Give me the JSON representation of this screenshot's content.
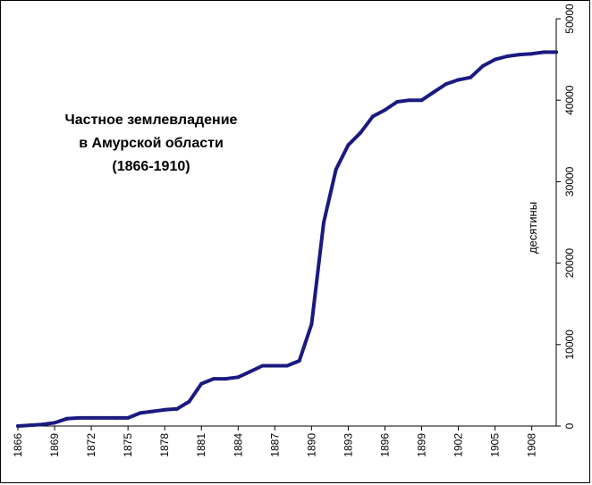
{
  "chart_data": {
    "type": "line",
    "title_lines": [
      "Частное землевладение",
      "в Амурской области",
      "(1866-1910)"
    ],
    "ylabel": "десятины",
    "ylim": [
      0,
      50000
    ],
    "yticks": [
      0,
      10000,
      20000,
      30000,
      40000,
      50000
    ],
    "xlim": [
      1866,
      1910
    ],
    "xticks": [
      1866,
      1869,
      1872,
      1875,
      1878,
      1881,
      1884,
      1887,
      1890,
      1893,
      1896,
      1899,
      1902,
      1905,
      1908
    ],
    "y_axis_position": "right",
    "grid": false,
    "series_color": "#1a1a80",
    "x": [
      1866,
      1867,
      1868,
      1869,
      1870,
      1871,
      1872,
      1873,
      1874,
      1875,
      1876,
      1877,
      1878,
      1879,
      1880,
      1881,
      1882,
      1883,
      1884,
      1885,
      1886,
      1887,
      1888,
      1889,
      1890,
      1891,
      1892,
      1893,
      1894,
      1895,
      1896,
      1897,
      1898,
      1899,
      1900,
      1901,
      1902,
      1903,
      1904,
      1905,
      1906,
      1907,
      1908,
      1909,
      1910
    ],
    "values": [
      0,
      100,
      200,
      400,
      900,
      1000,
      1000,
      1000,
      1000,
      1000,
      1600,
      1800,
      2000,
      2100,
      3000,
      5200,
      5800,
      5800,
      6000,
      6700,
      7400,
      7400,
      7400,
      8000,
      12500,
      25000,
      31500,
      34500,
      36000,
      38000,
      38800,
      39800,
      40000,
      40000,
      41000,
      42000,
      42500,
      42800,
      44200,
      45000,
      45400,
      45600,
      45700,
      45900,
      45900
    ]
  }
}
